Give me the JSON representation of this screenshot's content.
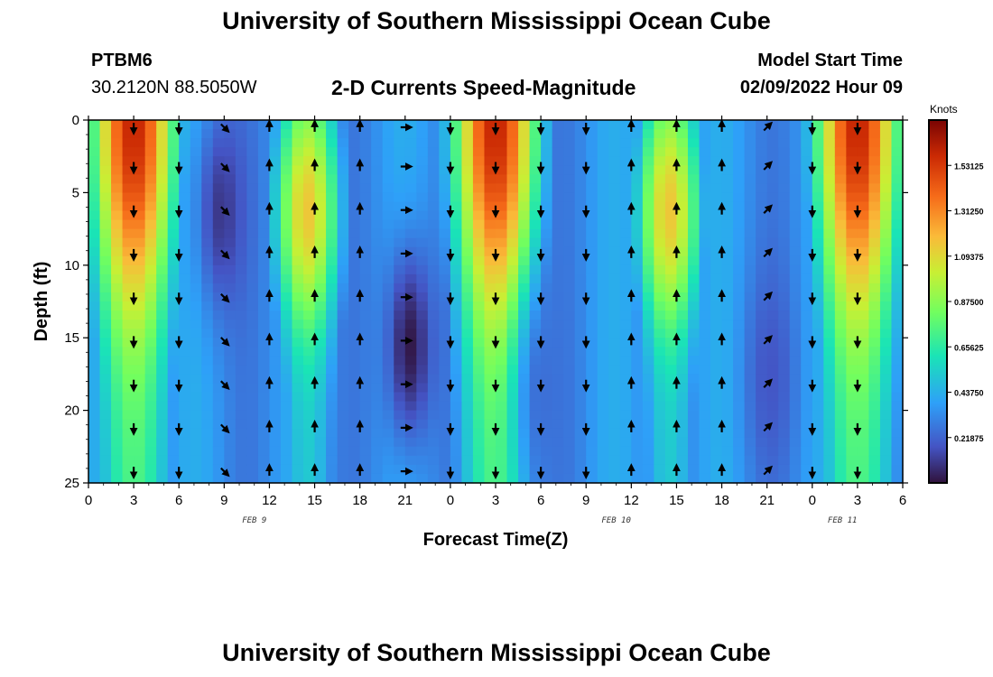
{
  "header": {
    "title": "University of Southern Mississippi Ocean Cube",
    "station_id": "PTBM6",
    "station_coords": "30.2120N  88.5050W",
    "subtitle": "2-D Currents Speed-Magnitude",
    "model_start_label": "Model Start Time",
    "model_start_value": "02/09/2022 Hour 09"
  },
  "footer": {
    "title": "University of Southern Mississippi Ocean Cube"
  },
  "chart_data": {
    "type": "heatmap",
    "title": "2-D Currents Speed-Magnitude",
    "xlabel": "Forecast Time(Z)",
    "ylabel": "Depth (ft)",
    "x_range_hours": [
      0,
      54
    ],
    "y_range_ft": [
      0,
      25
    ],
    "x_tick_labels": [
      "0",
      "3",
      "6",
      "9",
      "12",
      "15",
      "18",
      "21",
      "0",
      "3",
      "6",
      "9",
      "12",
      "15",
      "18",
      "21",
      "0",
      "3",
      "6"
    ],
    "y_tick_values": [
      0,
      5,
      10,
      15,
      20,
      25
    ],
    "y_tick_labels": [
      "0",
      "5",
      "10",
      "15",
      "20",
      "25"
    ],
    "date_labels": [
      {
        "text": "FEB 9",
        "hour": 11
      },
      {
        "text": "FEB 10",
        "hour": 35
      },
      {
        "text": "FEB 11",
        "hour": 50
      }
    ],
    "colorbar": {
      "label": "Knots",
      "min": 0,
      "max": 1.75,
      "tick_values": [
        1.53125,
        1.3125,
        1.09375,
        0.875,
        0.65625,
        0.4375,
        0.21875
      ],
      "tick_labels": [
        "1.53125",
        "1.31250",
        "1.09375",
        "0.87500",
        "0.65625",
        "0.43750",
        "0.21875"
      ]
    },
    "speed_model": {
      "description": "approximate current speed (knots) field reconstructed from the plot",
      "period_hours": 24,
      "phase_peak_hours": [
        3,
        14.5,
        27,
        38.5,
        51
      ],
      "surface_max": 1.6,
      "background_min": 0.35
    },
    "arrow_hours": [
      0,
      3,
      6,
      9,
      12,
      15,
      18,
      21,
      24,
      27,
      30,
      33,
      36,
      39,
      42,
      45,
      48,
      51,
      54
    ],
    "arrow_depths_ft": [
      0.5,
      3.2,
      6.2,
      9.2,
      12.2,
      15.2,
      18.2,
      21.2,
      24.2
    ],
    "arrow_directions": [
      "down",
      "down",
      "down",
      "down-right",
      "up",
      "up",
      "up",
      "right",
      "down",
      "down",
      "down",
      "down",
      "up",
      "up",
      "up",
      "up-right",
      "down",
      "down",
      "down"
    ]
  }
}
